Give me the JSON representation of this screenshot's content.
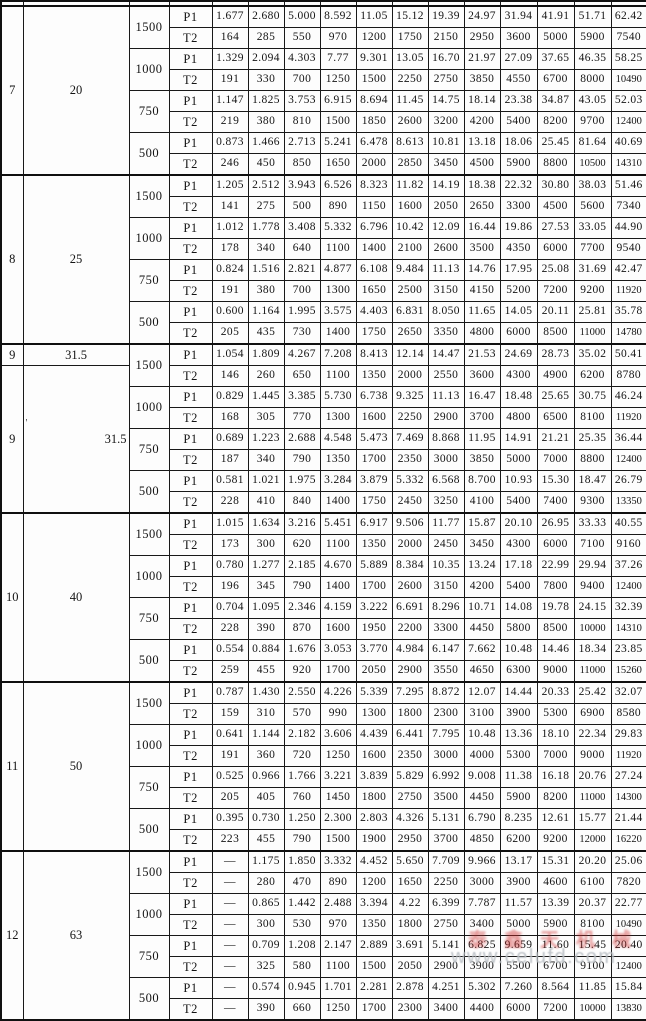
{
  "table": {
    "row_labels": {
      "p1": "P1",
      "t2": "T2"
    },
    "blocks": [
      {
        "model": "7",
        "ratio": "20",
        "rows": [
          {
            "speed": "1500",
            "p1": [
              "1.677",
              "2.680",
              "5.000",
              "8.592",
              "11.05",
              "15.12",
              "19.39",
              "24.97",
              "31.94",
              "41.91",
              "51.71",
              "62.42"
            ],
            "t2": [
              "164",
              "285",
              "550",
              "970",
              "1200",
              "1750",
              "2150",
              "2950",
              "3600",
              "5000",
              "5900",
              "7540"
            ]
          },
          {
            "speed": "1000",
            "p1": [
              "1.329",
              "2.094",
              "4.303",
              "7.77",
              "9.301",
              "13.05",
              "16.70",
              "21.97",
              "27.09",
              "37.65",
              "46.35",
              "58.25"
            ],
            "t2": [
              "191",
              "330",
              "700",
              "1250",
              "1500",
              "2250",
              "2750",
              "3850",
              "4550",
              "6700",
              "8000",
              "10490"
            ]
          },
          {
            "speed": "750",
            "p1": [
              "1.147",
              "1.825",
              "3.753",
              "6.915",
              "8.694",
              "11.45",
              "14.75",
              "18.14",
              "23.38",
              "34.87",
              "43.05",
              "52.03"
            ],
            "t2": [
              "219",
              "380",
              "810",
              "1500",
              "1850",
              "2600",
              "3200",
              "4200",
              "5400",
              "8200",
              "9700",
              "12400"
            ]
          },
          {
            "speed": "500",
            "p1": [
              "0.873",
              "1.466",
              "2.713",
              "5.241",
              "6.478",
              "8.613",
              "10.81",
              "13.18",
              "18.06",
              "25.45",
              "81.64",
              "40.69"
            ],
            "t2": [
              "246",
              "450",
              "850",
              "1650",
              "2000",
              "2850",
              "3450",
              "4500",
              "5900",
              "8800",
              "10500",
              "14310"
            ]
          }
        ]
      },
      {
        "model": "8",
        "ratio": "25",
        "rows": [
          {
            "speed": "1500",
            "p1": [
              "1.205",
              "2.512",
              "3.943",
              "6.526",
              "8.323",
              "11.82",
              "14.19",
              "18.38",
              "22.32",
              "30.80",
              "38.03",
              "51.46"
            ],
            "t2": [
              "141",
              "275",
              "500",
              "890",
              "1150",
              "1600",
              "2050",
              "2650",
              "3300",
              "4500",
              "5600",
              "7340"
            ]
          },
          {
            "speed": "1000",
            "p1": [
              "1.012",
              "1.778",
              "3.408",
              "5.332",
              "6.796",
              "10.42",
              "12.09",
              "16.44",
              "19.86",
              "27.53",
              "33.05",
              "44.90"
            ],
            "t2": [
              "178",
              "340",
              "640",
              "1100",
              "1400",
              "2100",
              "2600",
              "3500",
              "4350",
              "6000",
              "7700",
              "9540"
            ]
          },
          {
            "speed": "750",
            "p1": [
              "0.824",
              "1.516",
              "2.821",
              "4.877",
              "6.108",
              "9.484",
              "11.13",
              "14.76",
              "17.95",
              "25.08",
              "31.69",
              "42.47"
            ],
            "t2": [
              "191",
              "380",
              "700",
              "1300",
              "1650",
              "2500",
              "3150",
              "4150",
              "5200",
              "7200",
              "9200",
              "11920"
            ]
          },
          {
            "speed": "500",
            "p1": [
              "0.600",
              "1.164",
              "1.995",
              "3.575",
              "4.403",
              "6.831",
              "8.050",
              "11.65",
              "14.05",
              "20.11",
              "25.81",
              "35.78"
            ],
            "t2": [
              "205",
              "435",
              "730",
              "1400",
              "1750",
              "2650",
              "3350",
              "4800",
              "6000",
              "8500",
              "11000",
              "14780"
            ]
          }
        ]
      },
      {
        "model": "9",
        "ratio": "31.5",
        "split": true,
        "stray_mark": "'",
        "rows": [
          {
            "speed": "1500",
            "p1": [
              "1.054",
              "1.809",
              "4.267",
              "7.208",
              "8.413",
              "12.14",
              "14.47",
              "21.53",
              "24.69",
              "28.73",
              "35.02",
              "50.41"
            ],
            "t2": [
              "146",
              "260",
              "650",
              "1100",
              "1350",
              "2000",
              "2550",
              "3600",
              "4300",
              "4900",
              "6200",
              "8780"
            ]
          },
          {
            "speed": "1000",
            "p1": [
              "0.829",
              "1.445",
              "3.385",
              "5.730",
              "6.738",
              "9.325",
              "11.13",
              "16.47",
              "18.48",
              "25.65",
              "30.75",
              "46.24"
            ],
            "t2": [
              "168",
              "305",
              "770",
              "1300",
              "1600",
              "2250",
              "2900",
              "3700",
              "4800",
              "6500",
              "8100",
              "11920"
            ]
          },
          {
            "speed": "750",
            "p1": [
              "0.689",
              "1.223",
              "2.688",
              "4.548",
              "5.473",
              "7.469",
              "8.868",
              "11.95",
              "14.91",
              "21.21",
              "25.35",
              "36.44"
            ],
            "t2": [
              "187",
              "340",
              "790",
              "1350",
              "1700",
              "2350",
              "3000",
              "3850",
              "5000",
              "7000",
              "8800",
              "12400"
            ]
          },
          {
            "speed": "500",
            "p1": [
              "0.581",
              "1.021",
              "1.975",
              "3.284",
              "3.879",
              "5.332",
              "6.568",
              "8.700",
              "10.93",
              "15.30",
              "18.47",
              "26.79"
            ],
            "t2": [
              "228",
              "410",
              "840",
              "1400",
              "1750",
              "2450",
              "3250",
              "4100",
              "5400",
              "7400",
              "9300",
              "13350"
            ]
          }
        ]
      },
      {
        "model": "10",
        "ratio": "40",
        "rows": [
          {
            "speed": "1500",
            "p1": [
              "1.015",
              "1.634",
              "3.216",
              "5.451",
              "6.917",
              "9.506",
              "11.77",
              "15.87",
              "20.10",
              "26.95",
              "33.33",
              "40.55"
            ],
            "t2": [
              "173",
              "300",
              "620",
              "1100",
              "1350",
              "2000",
              "2450",
              "3450",
              "4300",
              "6000",
              "7100",
              "9160"
            ]
          },
          {
            "speed": "1000",
            "p1": [
              "0.780",
              "1.277",
              "2.185",
              "4.670",
              "5.889",
              "8.384",
              "10.35",
              "13.24",
              "17.18",
              "22.99",
              "29.94",
              "37.26"
            ],
            "t2": [
              "196",
              "345",
              "790",
              "1400",
              "1700",
              "2600",
              "3150",
              "4200",
              "5400",
              "7800",
              "9400",
              "12400"
            ]
          },
          {
            "speed": "750",
            "p1": [
              "0.704",
              "1.095",
              "2.346",
              "4.159",
              "3.222",
              "6.691",
              "8.296",
              "10.71",
              "14.08",
              "19.78",
              "24.15",
              "32.39"
            ],
            "t2": [
              "228",
              "390",
              "870",
              "1600",
              "1950",
              "2200",
              "3300",
              "4450",
              "5800",
              "8500",
              "10000",
              "14310"
            ]
          },
          {
            "speed": "500",
            "p1": [
              "0.554",
              "0.884",
              "1.676",
              "3.053",
              "3.770",
              "4.984",
              "6.147",
              "7.662",
              "10.48",
              "14.46",
              "18.34",
              "23.85"
            ],
            "t2": [
              "259",
              "455",
              "920",
              "1700",
              "2050",
              "2900",
              "3550",
              "4650",
              "6300",
              "9000",
              "11000",
              "15260"
            ]
          }
        ]
      },
      {
        "model": "11",
        "ratio": "50",
        "rows": [
          {
            "speed": "1500",
            "p1": [
              "0.787",
              "1.430",
              "2.550",
              "4.226",
              "5.339",
              "7.295",
              "8.872",
              "12.07",
              "14.44",
              "20.33",
              "25.42",
              "32.07"
            ],
            "t2": [
              "159",
              "310",
              "570",
              "990",
              "1300",
              "1800",
              "2300",
              "3100",
              "3900",
              "5300",
              "6900",
              "8580"
            ]
          },
          {
            "speed": "1000",
            "p1": [
              "0.641",
              "1.144",
              "2.182",
              "3.606",
              "4.439",
              "6.441",
              "7.795",
              "10.48",
              "13.36",
              "18.10",
              "22.34",
              "29.83"
            ],
            "t2": [
              "191",
              "360",
              "720",
              "1250",
              "1600",
              "2350",
              "3000",
              "4000",
              "5300",
              "7000",
              "9000",
              "11920"
            ]
          },
          {
            "speed": "750",
            "p1": [
              "0.525",
              "0.966",
              "1.766",
              "3.221",
              "3.839",
              "5.829",
              "6.992",
              "9.008",
              "11.38",
              "16.18",
              "20.76",
              "27.24"
            ],
            "t2": [
              "205",
              "405",
              "760",
              "1450",
              "1800",
              "2750",
              "3500",
              "4450",
              "5900",
              "8200",
              "11000",
              "14300"
            ]
          },
          {
            "speed": "500",
            "p1": [
              "0.395",
              "0.730",
              "1.250",
              "2.300",
              "2.803",
              "4.326",
              "5.131",
              "6.790",
              "8.235",
              "12.61",
              "15.77",
              "21.44"
            ],
            "t2": [
              "223",
              "455",
              "790",
              "1500",
              "1900",
              "2950",
              "3700",
              "4850",
              "6200",
              "9200",
              "12000",
              "16220"
            ]
          }
        ]
      },
      {
        "model": "12",
        "ratio": "63",
        "rows": [
          {
            "speed": "1500",
            "p1": [
              "—",
              "1.175",
              "1.850",
              "3.332",
              "4.452",
              "5.650",
              "7.709",
              "9.966",
              "13.17",
              "15.31",
              "20.20",
              "25.06"
            ],
            "t2": [
              "—",
              "280",
              "470",
              "890",
              "1200",
              "1650",
              "2250",
              "3000",
              "3900",
              "4600",
              "6100",
              "7820"
            ]
          },
          {
            "speed": "1000",
            "p1": [
              "—",
              "0.865",
              "1.442",
              "2.488",
              "3.394",
              "4.22",
              "6.399",
              "7.787",
              "11.57",
              "13.39",
              "20.37",
              "22.77"
            ],
            "t2": [
              "—",
              "300",
              "530",
              "970",
              "1350",
              "1800",
              "2750",
              "3400",
              "5000",
              "5900",
              "8100",
              "10490"
            ]
          },
          {
            "speed": "750",
            "p1": [
              "—",
              "0.709",
              "1.208",
              "2.147",
              "2.889",
              "3.691",
              "5.141",
              "6.825",
              "9.659",
              "11.60",
              "15.45",
              "20.40"
            ],
            "t2": [
              "—",
              "325",
              "580",
              "1100",
              "1500",
              "2050",
              "2900",
              "3900",
              "5500",
              "6700",
              "9100",
              "12400"
            ]
          },
          {
            "speed": "500",
            "p1": [
              "—",
              "0.574",
              "0.945",
              "1.701",
              "2.281",
              "2.878",
              "4.251",
              "5.302",
              "7.260",
              "8.564",
              "11.85",
              "15.84"
            ],
            "t2": [
              "—",
              "390",
              "660",
              "1250",
              "1700",
              "2300",
              "3400",
              "4400",
              "6000",
              "7200",
              "10000",
              "13830"
            ]
          }
        ]
      }
    ]
  },
  "watermark": {
    "cn_text": "泰鑫天机械",
    "url_text": "www.celufd.com",
    "accent_color": "#cc2c2c"
  }
}
